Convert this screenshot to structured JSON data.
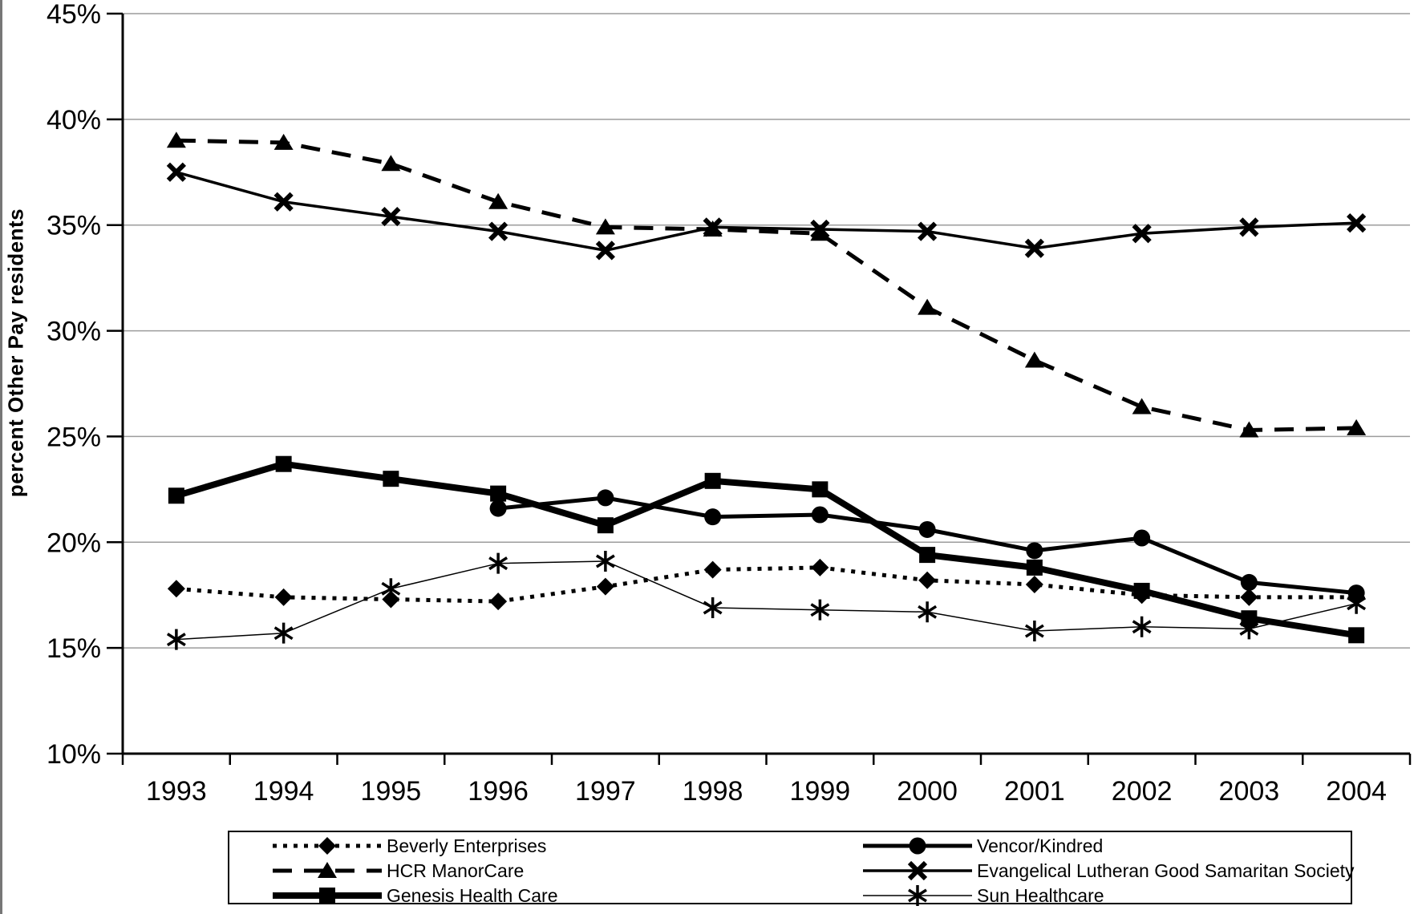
{
  "chart_data": {
    "type": "line",
    "title": "",
    "xlabel": "",
    "ylabel": "percent Other Pay residents",
    "ylim": [
      10,
      45
    ],
    "grid": "horizontal",
    "legend_position": "bottom",
    "y_ticks": [
      {
        "label": "45%",
        "value": 45
      },
      {
        "label": "40%",
        "value": 40
      },
      {
        "label": "35%",
        "value": 35
      },
      {
        "label": "30%",
        "value": 30
      },
      {
        "label": "25%",
        "value": 25
      },
      {
        "label": "20%",
        "value": 20
      },
      {
        "label": "15%",
        "value": 15
      },
      {
        "label": "10%",
        "value": 10
      }
    ],
    "categories": [
      "1993",
      "1994",
      "1995",
      "1996",
      "1997",
      "1998",
      "1999",
      "2000",
      "2001",
      "2002",
      "2003",
      "2004"
    ],
    "series": [
      {
        "name": "Beverly Enterprises",
        "marker": "diamond",
        "line_style": "dotted",
        "line_width": 5,
        "color": "#000000",
        "values": [
          17.8,
          17.4,
          17.3,
          17.2,
          17.9,
          18.7,
          18.8,
          18.2,
          18.0,
          17.5,
          17.4,
          17.4
        ]
      },
      {
        "name": "HCR ManorCare",
        "marker": "triangle",
        "line_style": "dashed",
        "line_width": 5,
        "color": "#000000",
        "values": [
          39.0,
          38.9,
          37.9,
          36.1,
          34.9,
          34.8,
          34.6,
          31.1,
          28.6,
          26.4,
          25.3,
          25.4
        ]
      },
      {
        "name": "Genesis Health Care",
        "marker": "square",
        "line_style": "solid",
        "line_width": 8,
        "color": "#000000",
        "values": [
          22.2,
          23.7,
          23.0,
          22.3,
          20.8,
          22.9,
          22.5,
          19.4,
          18.8,
          17.7,
          16.4,
          15.6
        ]
      },
      {
        "name": "Vencor/Kindred",
        "marker": "circle",
        "line_style": "solid",
        "line_width": 5,
        "color": "#000000",
        "values": [
          null,
          null,
          null,
          21.6,
          22.1,
          21.2,
          21.3,
          20.6,
          19.6,
          20.2,
          18.1,
          17.6
        ]
      },
      {
        "name": "Evangelical Lutheran Good Samaritan Society",
        "marker": "x",
        "line_style": "solid",
        "line_width": 3.5,
        "color": "#000000",
        "values": [
          37.5,
          36.1,
          35.4,
          34.7,
          33.8,
          34.9,
          34.8,
          34.7,
          33.9,
          34.6,
          34.9,
          35.1
        ]
      },
      {
        "name": "Sun Healthcare",
        "marker": "asterisk",
        "line_style": "solid",
        "line_width": 1.5,
        "color": "#000000",
        "values": [
          15.4,
          15.7,
          17.8,
          19.0,
          19.1,
          16.9,
          16.8,
          16.7,
          15.8,
          16.0,
          15.9,
          17.1
        ]
      }
    ],
    "legend_columns": [
      [
        0,
        1,
        2
      ],
      [
        3,
        4,
        5
      ]
    ],
    "colors": {
      "grid": "#9c9c9c",
      "axis": "#000000",
      "text": "#000000",
      "background": "#ffffff"
    }
  }
}
